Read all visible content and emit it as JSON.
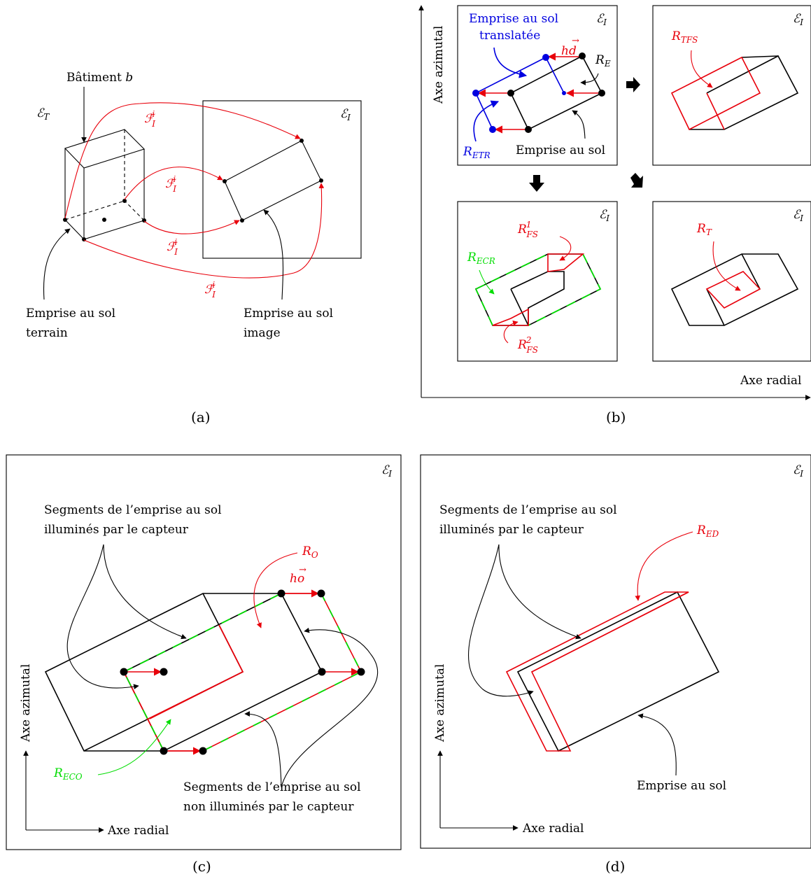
{
  "colors": {
    "red": "#e8000b",
    "blue": "#0000e0",
    "green": "#00dd00",
    "black": "#000000"
  },
  "a": {
    "caption": "(a)",
    "batiment": "Bâtiment",
    "batiment_vec": "b",
    "space_T": "ℰ",
    "space_T_sub": "T",
    "space_I": "ℰ",
    "space_I_sub": "I",
    "map_sym": "ℱ",
    "map_sup": "i",
    "map_sub": "I",
    "terrain_1": "Emprise au sol",
    "terrain_2": "terrain",
    "image_1": "Emprise au sol",
    "image_2": "image"
  },
  "b": {
    "caption": "(b)",
    "space_I": "ℰ",
    "space_I_sub": "I",
    "translated_1": "Emprise au sol",
    "translated_2": "translatée",
    "hd": "hd",
    "RE": "R",
    "RE_sub": "E",
    "RETR": "R",
    "RETR_sub": "ETR",
    "emprise": "Emprise au sol",
    "RTFS": "R",
    "RTFS_sub": "TFS",
    "RECR": "R",
    "RECR_sub": "ECR",
    "RFS": "R",
    "RFS_sub": "FS",
    "RFS1_sup": "1",
    "RFS2_sup": "2",
    "RT": "R",
    "RT_sub": "T",
    "axis_y": "Axe azimutal",
    "axis_x": "Axe radial"
  },
  "c": {
    "caption": "(c)",
    "space_I": "ℰ",
    "space_I_sub": "I",
    "lit_1": "Segments de l’emprise au sol",
    "lit_2": "illuminés par le capteur",
    "unlit_1": "Segments de l’emprise au sol",
    "unlit_2": "non illuminés par le capteur",
    "RO": "R",
    "RO_sub": "O",
    "ho": "ho",
    "RECO": "R",
    "RECO_sub": "ECO",
    "axis_y": "Axe azimutal",
    "axis_x": "Axe radial"
  },
  "d": {
    "caption": "(d)",
    "space_I": "ℰ",
    "space_I_sub": "I",
    "lit_1": "Segments de l’emprise au sol",
    "lit_2": "illuminés par le capteur",
    "RED": "R",
    "RED_sub": "ED",
    "emprise": "Emprise au sol",
    "axis_y": "Axe azimutal",
    "axis_x": "Axe radial"
  }
}
